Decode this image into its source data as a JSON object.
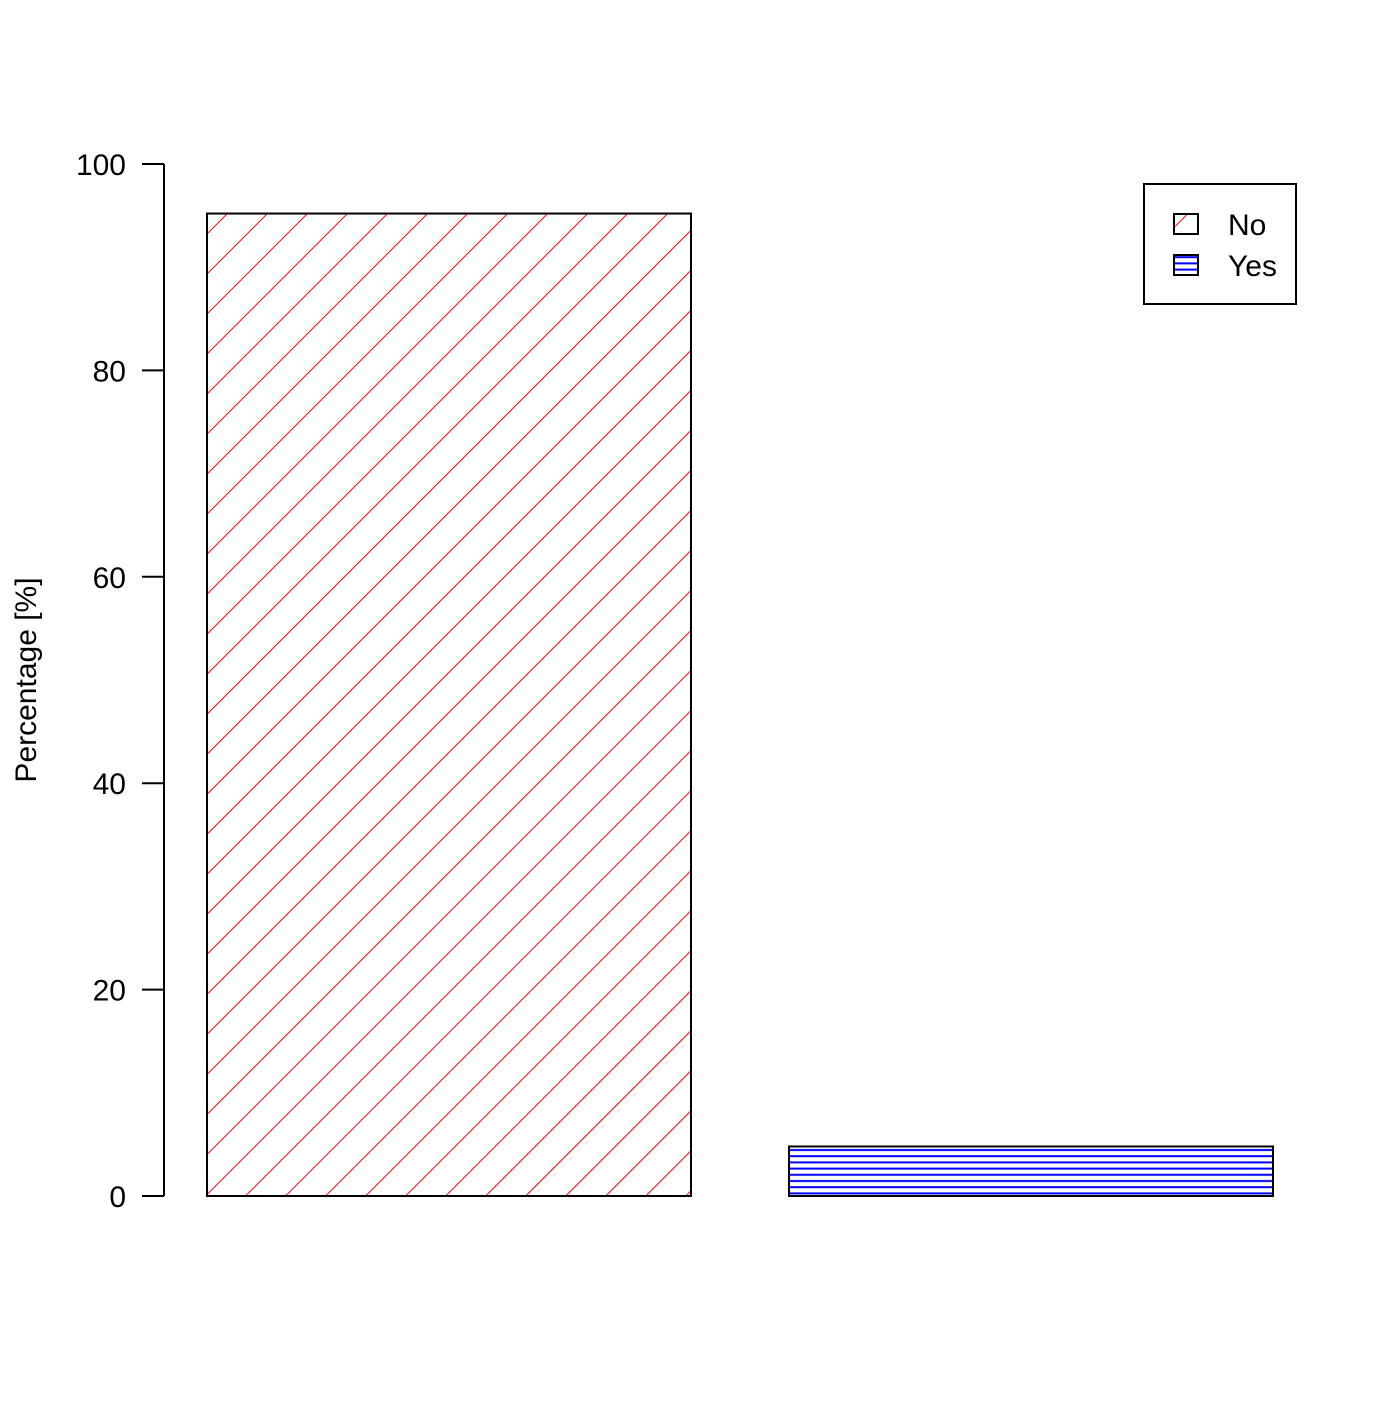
{
  "chart_data": {
    "type": "bar",
    "title": "",
    "xlabel": "",
    "ylabel": "Percentage [%]",
    "ylim": [
      0,
      100
    ],
    "yticks": [
      "0",
      "20",
      "40",
      "60",
      "80",
      "100"
    ],
    "categories": [
      "No",
      "Yes"
    ],
    "values": [
      95.2,
      4.8
    ],
    "colors": [
      "#ff0000",
      "#0000ff"
    ],
    "patterns": [
      "diagonal-lines",
      "horizontal-lines"
    ],
    "legend": {
      "position": "top-right",
      "entries": [
        "No",
        "Yes"
      ]
    },
    "grid": false
  }
}
